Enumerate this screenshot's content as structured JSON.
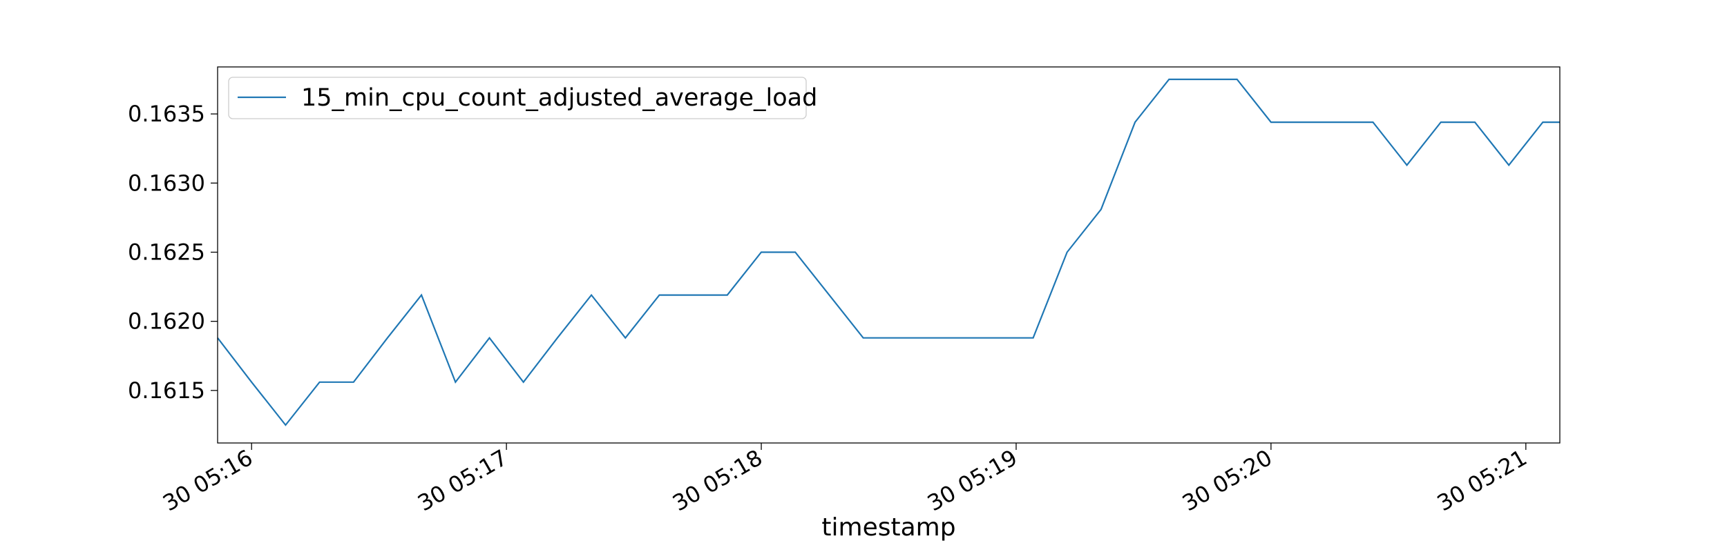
{
  "chart_data": {
    "type": "line",
    "title": "",
    "xlabel": "timestamp",
    "ylabel": "",
    "x_tick_labels": [
      "30 05:16",
      "30 05:17",
      "30 05:18",
      "30 05:19",
      "30 05:20",
      "30 05:21"
    ],
    "y_tick_labels": [
      "0.1615",
      "0.1620",
      "0.1625",
      "0.1630",
      "0.1635"
    ],
    "xlim": [
      "05:15:52",
      "05:21:08"
    ],
    "ylim": [
      0.16112,
      0.16384
    ],
    "grid": false,
    "legend": {
      "placement": "upper left",
      "entries": [
        "15_min_cpu_count_adjusted_average_load"
      ]
    },
    "series": [
      {
        "name": "15_min_cpu_count_adjusted_average_load",
        "color": "#1f77b4",
        "x": [
          "05:15:52",
          "05:16:00",
          "05:16:08",
          "05:16:16",
          "05:16:24",
          "05:16:32",
          "05:16:40",
          "05:16:48",
          "05:16:56",
          "05:17:04",
          "05:17:12",
          "05:17:20",
          "05:17:28",
          "05:17:36",
          "05:17:44",
          "05:17:52",
          "05:18:00",
          "05:18:08",
          "05:18:16",
          "05:18:24",
          "05:18:32",
          "05:18:40",
          "05:18:48",
          "05:18:56",
          "05:19:04",
          "05:19:12",
          "05:19:20",
          "05:19:28",
          "05:19:36",
          "05:19:44",
          "05:19:52",
          "05:20:00",
          "05:20:08",
          "05:20:16",
          "05:20:24",
          "05:20:32",
          "05:20:40",
          "05:20:48",
          "05:20:56",
          "05:21:04",
          "05:21:08"
        ],
        "y": [
          0.16188,
          0.16156,
          0.16125,
          0.16156,
          0.16156,
          0.16188,
          0.16219,
          0.16156,
          0.16188,
          0.16156,
          0.16188,
          0.16219,
          0.16188,
          0.16219,
          0.16219,
          0.16219,
          0.1625,
          0.1625,
          0.16219,
          0.16188,
          0.16188,
          0.16188,
          0.16188,
          0.16188,
          0.16188,
          0.1625,
          0.16281,
          0.16344,
          0.16375,
          0.16375,
          0.16375,
          0.16344,
          0.16344,
          0.16344,
          0.16344,
          0.16313,
          0.16344,
          0.16344,
          0.16313,
          0.16344,
          0.16344
        ]
      }
    ]
  }
}
